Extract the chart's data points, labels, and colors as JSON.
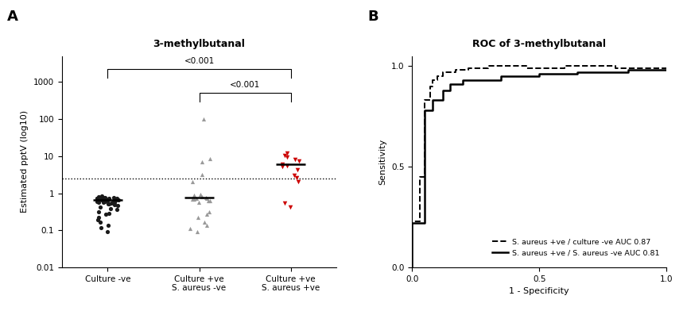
{
  "title_A": "3-methylbutanal",
  "title_B": "ROC of 3-methylbutanal",
  "ylabel_A": "Estimated pptV (log10)",
  "xlabel_B": "1 - Specificity",
  "ylabel_B": "Sensitivity",
  "label_A": "A",
  "label_B": "B",
  "dotted_line_y": 2.5,
  "group1_label": "Culture -ve",
  "group2_label": "Culture +ve\nS. aureus -ve",
  "group3_label": "Culture +ve\nS. aureus +ve",
  "group1_color": "#1a1a1a",
  "group2_color": "#999999",
  "group3_color": "#cc0000",
  "group1_median": 0.65,
  "group2_median": 0.75,
  "group3_median": 6.0,
  "group1_values": [
    0.55,
    0.62,
    0.68,
    0.72,
    0.48,
    0.52,
    0.58,
    0.63,
    0.67,
    0.74,
    0.78,
    0.56,
    0.61,
    0.66,
    0.73,
    0.76,
    0.47,
    0.51,
    0.57,
    0.64,
    0.69,
    0.73,
    0.77,
    0.58,
    0.62,
    0.67,
    0.38,
    0.32,
    0.27,
    0.22,
    0.17,
    0.12,
    0.09,
    0.8,
    0.85,
    0.6,
    0.65,
    0.7,
    0.42,
    0.36,
    0.28,
    0.19,
    0.14
  ],
  "group2_values": [
    0.82,
    0.77,
    0.72,
    0.68,
    0.63,
    0.58,
    0.88,
    0.92,
    0.72,
    0.68,
    0.63,
    0.32,
    0.27,
    0.22,
    0.17,
    0.14,
    0.11,
    0.09,
    7.0,
    8.5,
    100.0,
    3.2,
    2.1
  ],
  "group3_values": [
    12.0,
    10.5,
    9.2,
    8.1,
    7.3,
    6.2,
    5.4,
    5.1,
    4.2,
    3.1,
    2.6,
    2.1,
    0.55,
    0.42
  ],
  "roc1_fpr": [
    0.0,
    0.0,
    0.03,
    0.03,
    0.05,
    0.05,
    0.07,
    0.07,
    0.08,
    0.08,
    0.1,
    0.1,
    0.12,
    0.12,
    0.17,
    0.17,
    0.22,
    0.22,
    0.3,
    0.3,
    0.45,
    0.45,
    0.6,
    0.6,
    0.8,
    0.8,
    1.0
  ],
  "roc1_tpr": [
    0.0,
    0.23,
    0.23,
    0.45,
    0.45,
    0.83,
    0.83,
    0.9,
    0.9,
    0.93,
    0.93,
    0.95,
    0.95,
    0.97,
    0.97,
    0.98,
    0.98,
    0.99,
    0.99,
    1.0,
    1.0,
    0.99,
    0.99,
    1.0,
    1.0,
    0.99,
    0.99
  ],
  "roc2_fpr": [
    0.0,
    0.0,
    0.05,
    0.05,
    0.08,
    0.08,
    0.12,
    0.12,
    0.15,
    0.15,
    0.2,
    0.2,
    0.35,
    0.35,
    0.5,
    0.5,
    0.65,
    0.65,
    0.85,
    0.85,
    1.0
  ],
  "roc2_tpr": [
    0.0,
    0.22,
    0.22,
    0.78,
    0.78,
    0.83,
    0.83,
    0.88,
    0.88,
    0.91,
    0.91,
    0.93,
    0.93,
    0.95,
    0.95,
    0.96,
    0.96,
    0.97,
    0.97,
    0.98,
    0.98
  ],
  "roc1_label": "S. aureus +ve / culture -ve AUC 0.87",
  "roc2_label": "S. aureus +ve / S. aureus -ve AUC 0.81",
  "ylim_A_min": 0.01,
  "ylim_A_max": 5000,
  "ylim_B_min": 0.0,
  "ylim_B_max": 1.05,
  "xlim_B_min": 0.0,
  "xlim_B_max": 1.0
}
